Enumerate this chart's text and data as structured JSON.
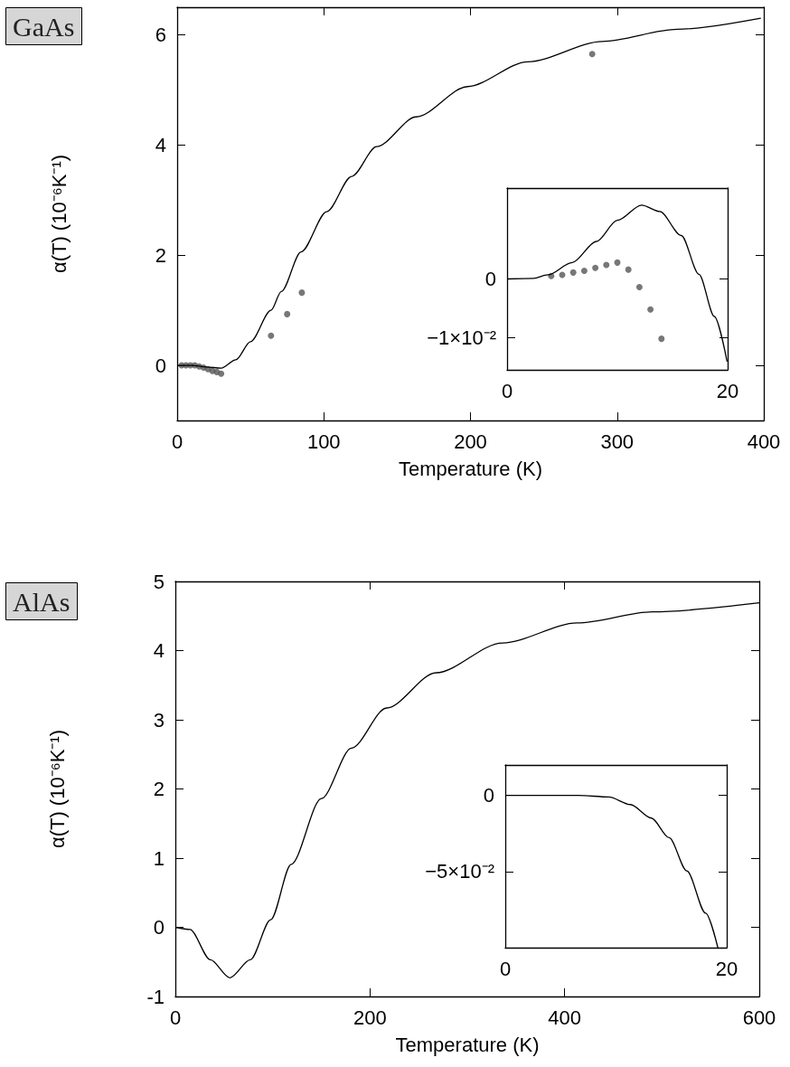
{
  "chart_data": [
    {
      "type": "line",
      "title": "GaAs",
      "xlabel": "Temperature (K)",
      "ylabel": "α(T) (10⁻⁶K⁻¹)",
      "xlim": [
        0,
        400
      ],
      "xticks": [
        0,
        100,
        200,
        300,
        400
      ],
      "ylim": [
        -1,
        6.5
      ],
      "yticks": [
        0,
        2,
        4,
        6
      ],
      "grid": false,
      "series": [
        {
          "marker": "none",
          "color": "#000000",
          "x": [
            0,
            10,
            20,
            30,
            40,
            50,
            64,
            71,
            84.5,
            102,
            119,
            136,
            163,
            198,
            239,
            290,
            341,
            398
          ],
          "values": [
            0,
            0,
            -0.03,
            -0.05,
            0.1,
            0.43,
            1.0,
            1.34,
            2.06,
            2.79,
            3.43,
            3.97,
            4.51,
            5.06,
            5.51,
            5.88,
            6.1,
            6.3
          ]
        },
        {
          "type": "scatter",
          "marker": "circle",
          "color": "#555555",
          "x": [
            3,
            6,
            9,
            12,
            15,
            18,
            21,
            24,
            27,
            30,
            64,
            75,
            85,
            283
          ],
          "values": [
            0,
            0,
            0,
            0,
            -0.02,
            -0.04,
            -0.07,
            -0.1,
            -0.12,
            -0.15,
            0.54,
            0.93,
            1.32,
            5.65
          ]
        }
      ]
    },
    {
      "type": "line",
      "xlim": [
        0,
        20
      ],
      "xticks": [
        0,
        20
      ],
      "ylim": [
        -0.0155,
        0.0155
      ],
      "yticks": [
        0,
        {
          "value": -0.01,
          "label": "−1×10⁻²"
        }
      ],
      "grid": false,
      "series": [
        {
          "marker": "none",
          "color": "#000000",
          "x": [
            0,
            2.4,
            3.7,
            5.9,
            8.1,
            10,
            12.2,
            13.85,
            15.8,
            17.4,
            18.8,
            19.95
          ],
          "values": [
            0,
            0.0001,
            0.0007,
            0.0028,
            0.0064,
            0.01,
            0.0126,
            0.0115,
            0.0074,
            0.0008,
            -0.0064,
            -0.0141
          ]
        },
        {
          "type": "scatter",
          "marker": "circle",
          "color": "#555555",
          "x": [
            4,
            5,
            6,
            7,
            8,
            9,
            10,
            11,
            12,
            13,
            14
          ],
          "values": [
            0.0005,
            0.0007,
            0.0011,
            0.0014,
            0.0019,
            0.0024,
            0.0028,
            0.0016,
            -0.0014,
            -0.0052,
            -0.0102
          ]
        }
      ]
    },
    {
      "type": "line",
      "title": "AlAs",
      "xlabel": "Temperature (K)",
      "ylabel": "α(T) (10⁻⁶K⁻¹)",
      "xlim": [
        0,
        600
      ],
      "xticks": [
        0,
        200,
        400,
        600
      ],
      "ylim": [
        -1,
        5
      ],
      "yticks": [
        -1,
        0,
        1,
        2,
        3,
        4,
        5
      ],
      "grid": false,
      "series": [
        {
          "marker": "none",
          "color": "#000000",
          "x": [
            0,
            15,
            36,
            56,
            77,
            98,
            119,
            150,
            181,
            217,
            268,
            336,
            413,
            490,
            600
          ],
          "values": [
            0,
            -0.03,
            -0.47,
            -0.73,
            -0.47,
            0.11,
            0.91,
            1.86,
            2.59,
            3.17,
            3.68,
            4.11,
            4.4,
            4.56,
            4.69
          ]
        }
      ]
    },
    {
      "type": "line",
      "xlim": [
        0,
        20
      ],
      "xticks": [
        0,
        20
      ],
      "ylim": [
        -0.1,
        0.02
      ],
      "yticks": [
        0,
        {
          "value": -0.05,
          "label": "−5×10⁻²"
        }
      ],
      "grid": false,
      "series": [
        {
          "marker": "none",
          "color": "#000000",
          "x": [
            0,
            6.6,
            9.35,
            11.3,
            13.2,
            14.8,
            16.4,
            18.1,
            19.2
          ],
          "values": [
            0,
            0,
            -0.001,
            -0.006,
            -0.0149,
            -0.0278,
            -0.0496,
            -0.0774,
            -0.1
          ]
        }
      ]
    }
  ]
}
